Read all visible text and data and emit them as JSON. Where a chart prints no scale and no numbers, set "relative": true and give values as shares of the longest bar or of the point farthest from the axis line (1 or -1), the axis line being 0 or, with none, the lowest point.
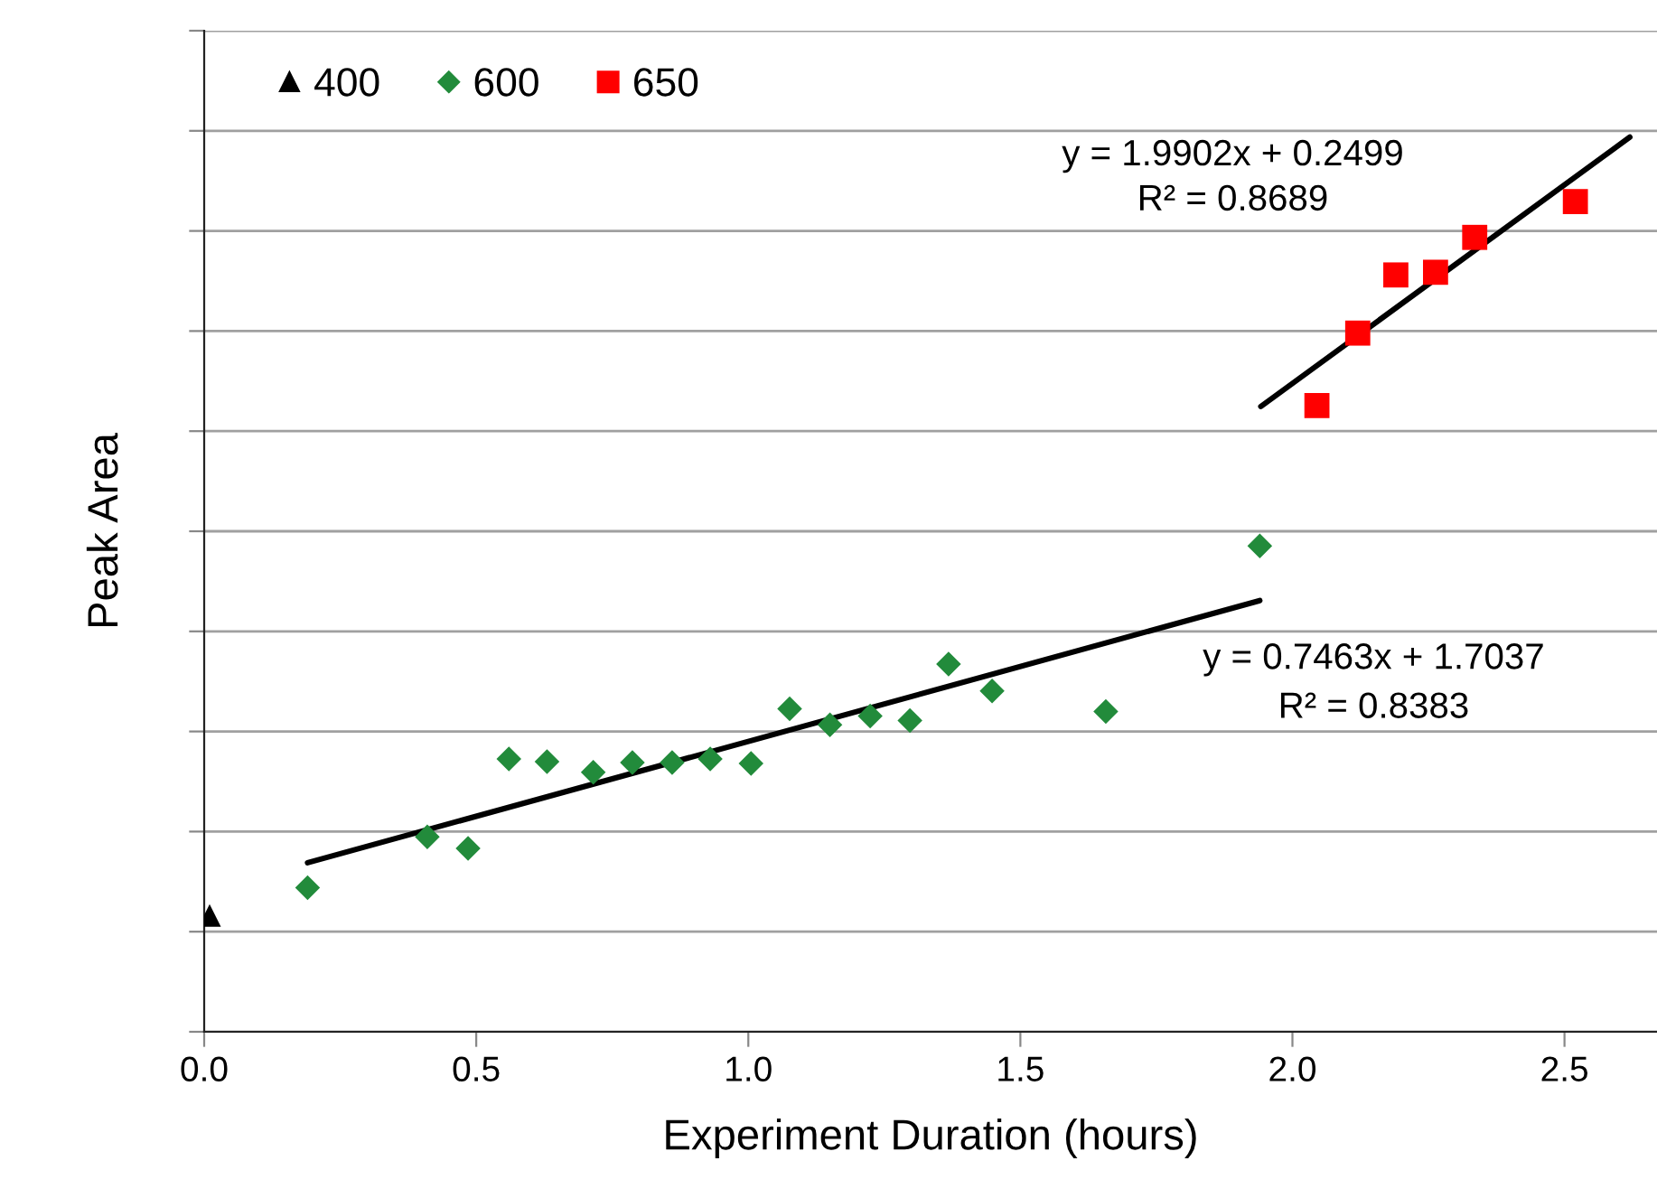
{
  "chart_data": {
    "type": "scatter",
    "relative": true,
    "xlabel": "Experiment Duration (hours)",
    "ylabel": "Peak Area",
    "xlim": [
      0,
      2.67
    ],
    "xticks": [
      {
        "value": 0,
        "label": "0.0"
      },
      {
        "value": 0.5,
        "label": "0.5"
      },
      {
        "value": 1,
        "label": "1.0"
      },
      {
        "value": 1.5,
        "label": "1.5"
      },
      {
        "value": 2,
        "label": "2.0"
      },
      {
        "value": 2.5,
        "label": "2.5"
      }
    ],
    "tick_labels": "x",
    "grid": true,
    "legend": "top left",
    "series": [
      {
        "name": "400",
        "color": "#000000",
        "marker": "triangle",
        "x": [
          0.01
        ],
        "values": [
          0.13
        ]
      },
      {
        "name": "600",
        "color": "#228b3b",
        "marker": "diamond",
        "x": [
          0.19,
          0.41,
          0.485,
          0.56,
          0.63,
          0.715,
          0.787,
          0.86,
          0.93,
          1.005,
          1.076,
          1.15,
          1.224,
          1.297,
          1.368,
          1.448,
          1.657,
          1.94
        ],
        "values": [
          0.161,
          0.218,
          0.205,
          0.305,
          0.302,
          0.29,
          0.301,
          0.301,
          0.305,
          0.3,
          0.361,
          0.343,
          0.353,
          0.348,
          0.411,
          0.381,
          0.358,
          0.543
        ]
      },
      {
        "name": "650",
        "color": "#ff0000",
        "marker": "square",
        "x": [
          2.045,
          2.12,
          2.19,
          2.263,
          2.335,
          2.52
        ],
        "values": [
          0.7,
          0.781,
          0.846,
          0.849,
          0.888,
          0.928
        ]
      },
      {
        "type": "line",
        "color": "#000000",
        "marker": "none",
        "x": [
          0.19,
          1.94
        ],
        "values": [
          0.189,
          0.482
        ]
      },
      {
        "type": "line",
        "color": "#000000",
        "marker": "none",
        "x": [
          1.942,
          2.62
        ],
        "values": [
          0.699,
          1.0
        ]
      }
    ],
    "annotations": [
      "y = 1.9902x + 0.2499",
      "R² = 0.8689",
      "y = 0.7463x + 1.7037",
      "R² = 0.8383"
    ]
  }
}
